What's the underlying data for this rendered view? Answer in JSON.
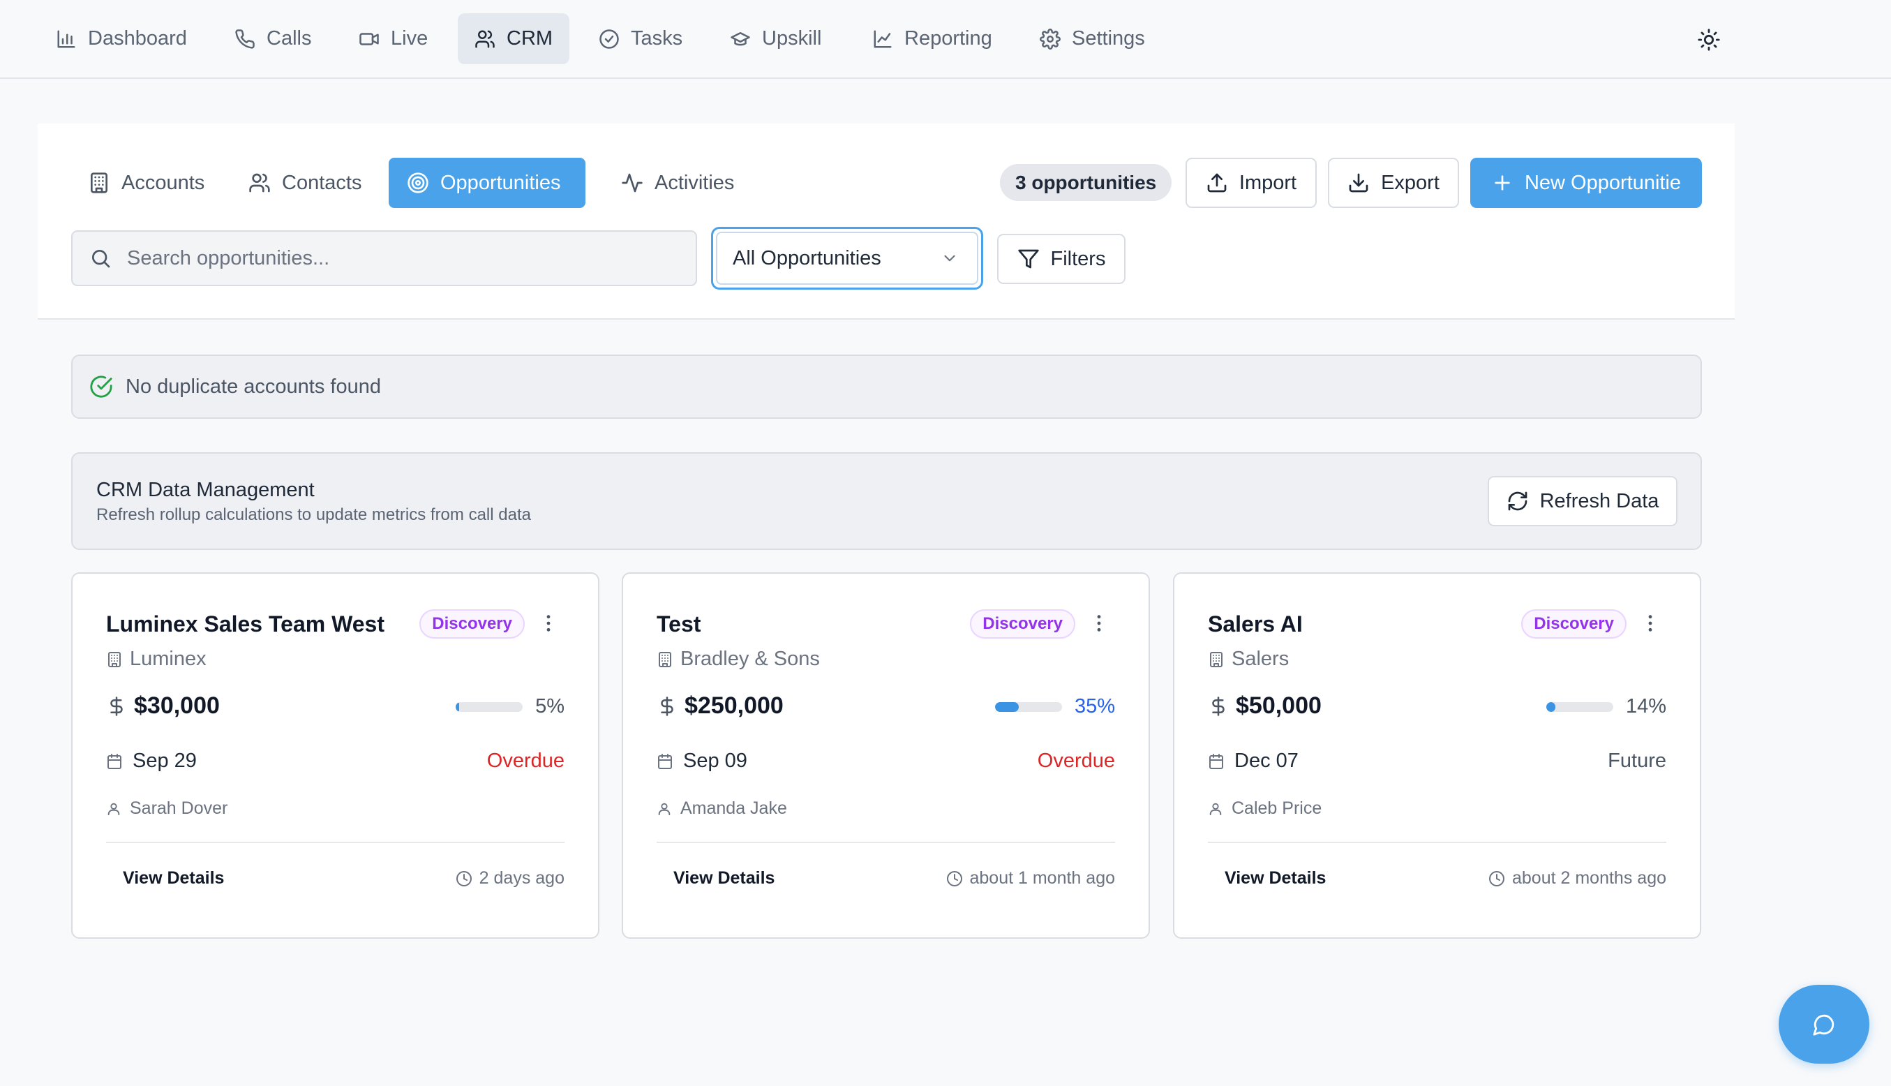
{
  "nav": {
    "items": [
      {
        "label": "Dashboard",
        "icon": "bar-chart-icon"
      },
      {
        "label": "Calls",
        "icon": "phone-icon"
      },
      {
        "label": "Live",
        "icon": "video-icon"
      },
      {
        "label": "CRM",
        "icon": "users-icon",
        "active": true
      },
      {
        "label": "Tasks",
        "icon": "check-circle-icon"
      },
      {
        "label": "Upskill",
        "icon": "graduation-cap-icon"
      },
      {
        "label": "Reporting",
        "icon": "line-chart-icon"
      },
      {
        "label": "Settings",
        "icon": "gear-icon"
      }
    ],
    "theme_icon": "sun-icon"
  },
  "crm": {
    "tabs": [
      {
        "label": "Accounts",
        "icon": "building-icon"
      },
      {
        "label": "Contacts",
        "icon": "users-icon"
      },
      {
        "label": "Opportunities",
        "icon": "target-icon",
        "active": true
      },
      {
        "label": "Activities",
        "icon": "activity-icon"
      }
    ],
    "count_badge": "3 opportunities",
    "import_label": "Import",
    "export_label": "Export",
    "new_label": "New Opportunitie",
    "search_placeholder": "Search opportunities...",
    "search_value": "",
    "filter_selected": "All Opportunities",
    "filters_label": "Filters"
  },
  "alert": {
    "text": "No duplicate accounts found"
  },
  "management": {
    "title": "CRM Data Management",
    "subtitle": "Refresh rollup calculations to update metrics from call data",
    "refresh_label": "Refresh Data"
  },
  "cards": [
    {
      "title": "Luminex Sales Team West",
      "stage": "Discovery",
      "account": "Luminex",
      "amount": "$30,000",
      "probability": 5,
      "probability_label": "5%",
      "date": "Sep 29",
      "status": "Overdue",
      "owner": "Sarah Dover",
      "view_label": "View Details",
      "updated": "2 days ago"
    },
    {
      "title": "Test",
      "stage": "Discovery",
      "account": "Bradley & Sons",
      "amount": "$250,000",
      "probability": 35,
      "probability_label": "35%",
      "date": "Sep 09",
      "status": "Overdue",
      "owner": "Amanda Jake",
      "view_label": "View Details",
      "updated": "about 1 month ago"
    },
    {
      "title": "Salers AI",
      "stage": "Discovery",
      "account": "Salers",
      "amount": "$50,000",
      "probability": 14,
      "probability_label": "14%",
      "date": "Dec 07",
      "status": "Future",
      "owner": "Caleb Price",
      "view_label": "View Details",
      "updated": "about 2 months ago"
    }
  ],
  "colors": {
    "accent": "#4aa3ea",
    "overdue": "#dc2626",
    "probability_high": "#2563eb",
    "success": "#22a046",
    "stage_badge": "#9333ea"
  },
  "chat_icon": "message-circle-icon"
}
